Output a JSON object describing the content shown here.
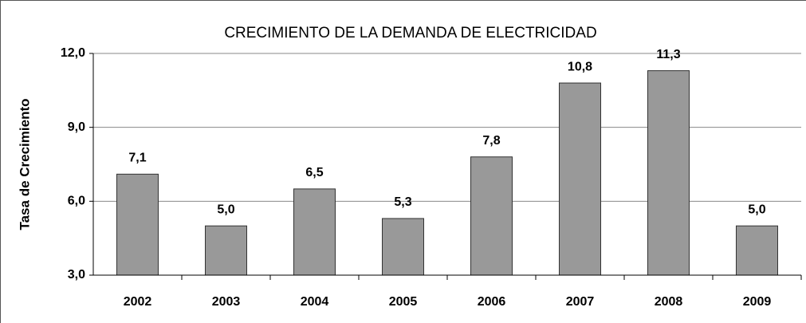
{
  "chart_data": {
    "type": "bar",
    "title": "CRECIMIENTO DE LA DEMANDA DE ELECTRICIDAD",
    "y_label": "Tasa de Crecimiento",
    "categories": [
      "2002",
      "2003",
      "2004",
      "2005",
      "2006",
      "2007",
      "2008",
      "2009"
    ],
    "values": [
      7.1,
      5.0,
      6.5,
      5.3,
      7.8,
      10.8,
      11.3,
      5.0
    ],
    "value_labels": [
      "7,1",
      "5,0",
      "6,5",
      "5,3",
      "7,8",
      "10,8",
      "11,3",
      "5,0"
    ],
    "color": "#999999",
    "ylim": [
      3,
      12
    ],
    "yticks": [
      {
        "value": 3,
        "label": "3,0"
      },
      {
        "value": 6,
        "label": "6,0"
      },
      {
        "value": 9,
        "label": "9,0"
      },
      {
        "value": 12,
        "label": "12,0"
      }
    ],
    "grid": true
  }
}
